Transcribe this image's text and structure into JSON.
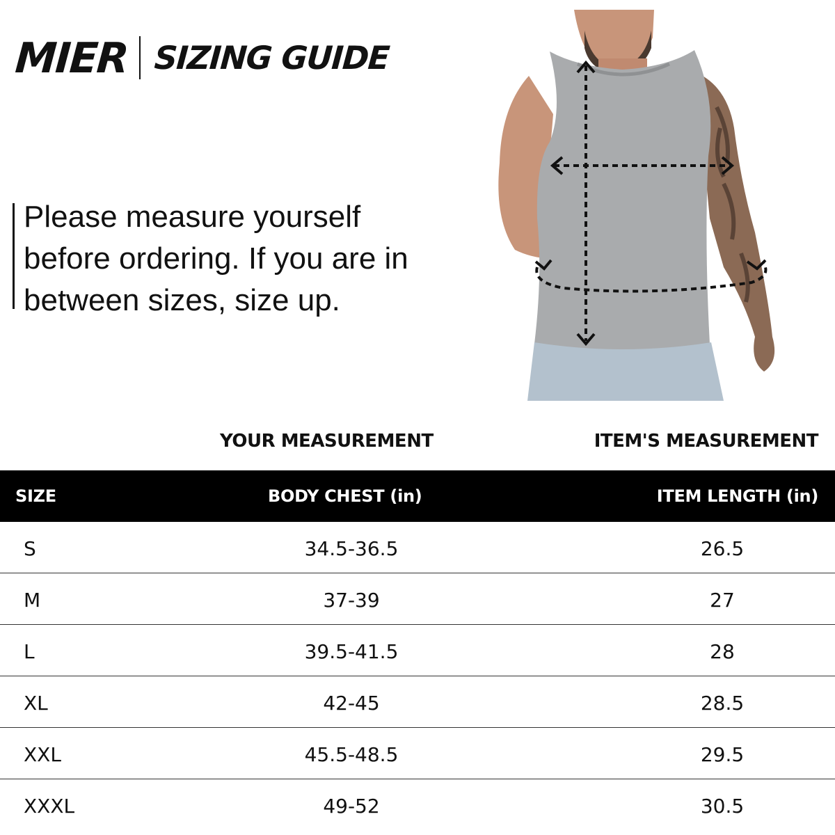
{
  "brand": "MIER",
  "guide_title": "SIZING GUIDE",
  "instruction": "Please measure yourself before ordering. If you are in between sizes, size up.",
  "groups": {
    "your_measurement": "YOUR MEASUREMENT",
    "item_measurement": "ITEM'S MEASUREMENT"
  },
  "table": {
    "headers": {
      "size": "SIZE",
      "body_chest": "BODY CHEST (in)",
      "item_length": "ITEM LENGTH (in)"
    },
    "rows": [
      {
        "size": "S",
        "body_chest": "34.5-36.5",
        "item_length": "26.5"
      },
      {
        "size": "M",
        "body_chest": "37-39",
        "item_length": "27"
      },
      {
        "size": "L",
        "body_chest": "39.5-41.5",
        "item_length": "28"
      },
      {
        "size": "XL",
        "body_chest": "42-45",
        "item_length": "28.5"
      },
      {
        "size": "XXL",
        "body_chest": "45.5-48.5",
        "item_length": "29.5"
      },
      {
        "size": "XXXL",
        "body_chest": "49-52",
        "item_length": "30.5"
      }
    ]
  },
  "colors": {
    "header_bg": "#000000",
    "header_text": "#ffffff",
    "shirt": "#a9abad",
    "shorts": "#b3c1cd",
    "skin": "#c8957a"
  }
}
